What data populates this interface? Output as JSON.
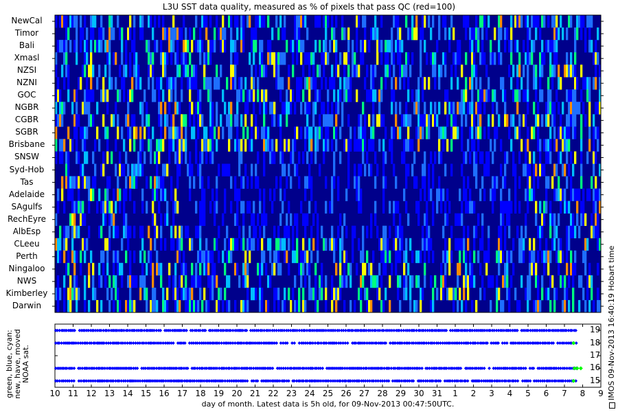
{
  "title": "L3U SST data quality, measured as % of pixels that pass QC (red=100)",
  "side_label": "IMOS 09-Nov-2013 16:40:19 Hobart time",
  "chart_data": [
    {
      "type": "heatmap",
      "title": "L3U SST data quality, measured as % of pixels that pass QC (red=100)",
      "regions": [
        "NewCal",
        "Timor",
        "Bali",
        "Xmasl",
        "NZSI",
        "NZNI",
        "GOC",
        "NGBR",
        "CGBR",
        "SGBR",
        "Brisbane",
        "SNSW",
        "Syd-Hob",
        "Tas",
        "Adelaide",
        "SAgulfs",
        "RechEyre",
        "AlbEsp",
        "CLeeu",
        "Perth",
        "Ningaloo",
        "NWS",
        "Kimberley",
        "Darwin"
      ],
      "value_range": [
        0,
        100
      ],
      "colormap": [
        "#00008b",
        "#0000ff",
        "#00bfff",
        "#00ff7f",
        "#ffff00",
        "#ff0000"
      ]
    },
    {
      "type": "scatter",
      "ylabel": "green, blue, cyan:\nnew, have, moved\nNOAA sat.",
      "xlabel": "day of month. Latest data is 5h old, for 09-Nov-2013 00:47:50UTC.",
      "x_ticks": [
        "10",
        "11",
        "12",
        "13",
        "14",
        "15",
        "16",
        "17",
        "18",
        "19",
        "20",
        "21",
        "22",
        "23",
        "24",
        "25",
        "26",
        "27",
        "28",
        "29",
        "30",
        "31",
        "1",
        "2",
        "3",
        "4",
        "5",
        "6",
        "7",
        "8",
        "9"
      ],
      "y_ticks": [
        15,
        16,
        17,
        18,
        19
      ],
      "xlim": [
        10,
        40
      ],
      "ylim": [
        14.5,
        19.5
      ],
      "series": [
        {
          "color": "#0000ff",
          "satellites": [
            15,
            16,
            18,
            19
          ],
          "x_range": [
            10.05,
            38.7
          ]
        },
        {
          "color": "#00ff00",
          "points": [
            [
              38.5,
              18
            ],
            [
              38.55,
              16
            ],
            [
              38.7,
              16
            ],
            [
              38.9,
              16
            ],
            [
              38.5,
              15
            ]
          ]
        }
      ]
    }
  ]
}
